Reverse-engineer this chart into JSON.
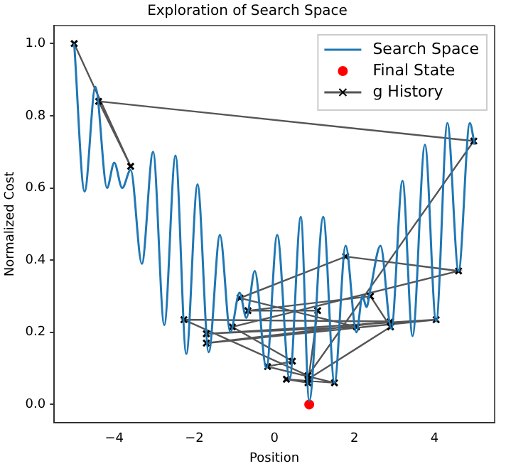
{
  "chart_data": {
    "type": "line",
    "title": "Exploration of Search Space",
    "xlabel": "Position",
    "ylabel": "Normalized Cost",
    "xlim": [
      -5.5,
      5.5
    ],
    "xticks": [
      -4,
      -2,
      0,
      2,
      4
    ],
    "ylim": [
      -0.05,
      1.05
    ],
    "yticks": [
      {
        "value": 0,
        "label": "0.0"
      },
      {
        "value": 0.2,
        "label": "0.2"
      },
      {
        "value": 0.4,
        "label": "0.4"
      },
      {
        "value": 0.6,
        "label": "0.6"
      },
      {
        "value": 0.8,
        "label": "0.8"
      },
      {
        "value": 1,
        "label": "1.0"
      }
    ],
    "grid": false,
    "legend": "top right",
    "series": [
      {
        "name": "Search Space",
        "color": "#1f77b4",
        "marker": "none",
        "x": [
          -5,
          -4.74,
          -4.47,
          -4.18,
          -4.0,
          -3.8,
          -3.59,
          -3.31,
          -3.03,
          -2.75,
          -2.47,
          -2.2,
          -1.92,
          -1.64,
          -1.36,
          -1.1,
          -0.87,
          -0.7,
          -0.49,
          -0.2,
          0.07,
          0.38,
          0.66,
          0.87,
          1.22,
          1.5,
          1.78,
          2.05,
          2.2,
          2.3,
          2.4,
          2.65,
          2.92,
          3.2,
          3.45,
          3.76,
          4.04,
          4.32,
          4.6,
          4.88,
          5
        ],
        "values": [
          1.0,
          0.59,
          0.88,
          0.6,
          0.67,
          0.6,
          0.65,
          0.39,
          0.7,
          0.22,
          0.69,
          0.14,
          0.61,
          0.145,
          0.47,
          0.2,
          0.31,
          0.24,
          0.37,
          0.1,
          0.47,
          0.07,
          0.52,
          0.01,
          0.52,
          0.06,
          0.44,
          0.2,
          0.3,
          0.27,
          0.32,
          0.44,
          0.21,
          0.62,
          0.19,
          0.72,
          0.23,
          0.78,
          0.37,
          0.78,
          0.72
        ]
      },
      {
        "name": "Final State",
        "type": "scatter",
        "color": "#ff0000",
        "marker": "circle",
        "x": [
          0.87
        ],
        "values": [
          0.0
        ]
      },
      {
        "name": "g History",
        "type": "line",
        "color": "#555555",
        "marker": "cross",
        "x": [
          -5,
          -3.59,
          -4.39,
          4.98,
          0.84,
          -2.26,
          2.9,
          -1.7,
          4.04,
          -1.7,
          2.05,
          -0.86,
          1.78,
          4.6,
          -1.05,
          0.45,
          -0.17,
          1.5,
          0.3,
          0.84,
          1.08,
          -0.66,
          2.4,
          2.9,
          0.84
        ],
        "values": [
          1.0,
          0.66,
          0.84,
          0.73,
          0.08,
          0.235,
          0.23,
          0.17,
          0.235,
          0.196,
          0.215,
          0.295,
          0.41,
          0.37,
          0.215,
          0.12,
          0.105,
          0.06,
          0.07,
          0.06,
          0.26,
          0.26,
          0.3,
          0.215,
          0.07
        ]
      }
    ]
  }
}
